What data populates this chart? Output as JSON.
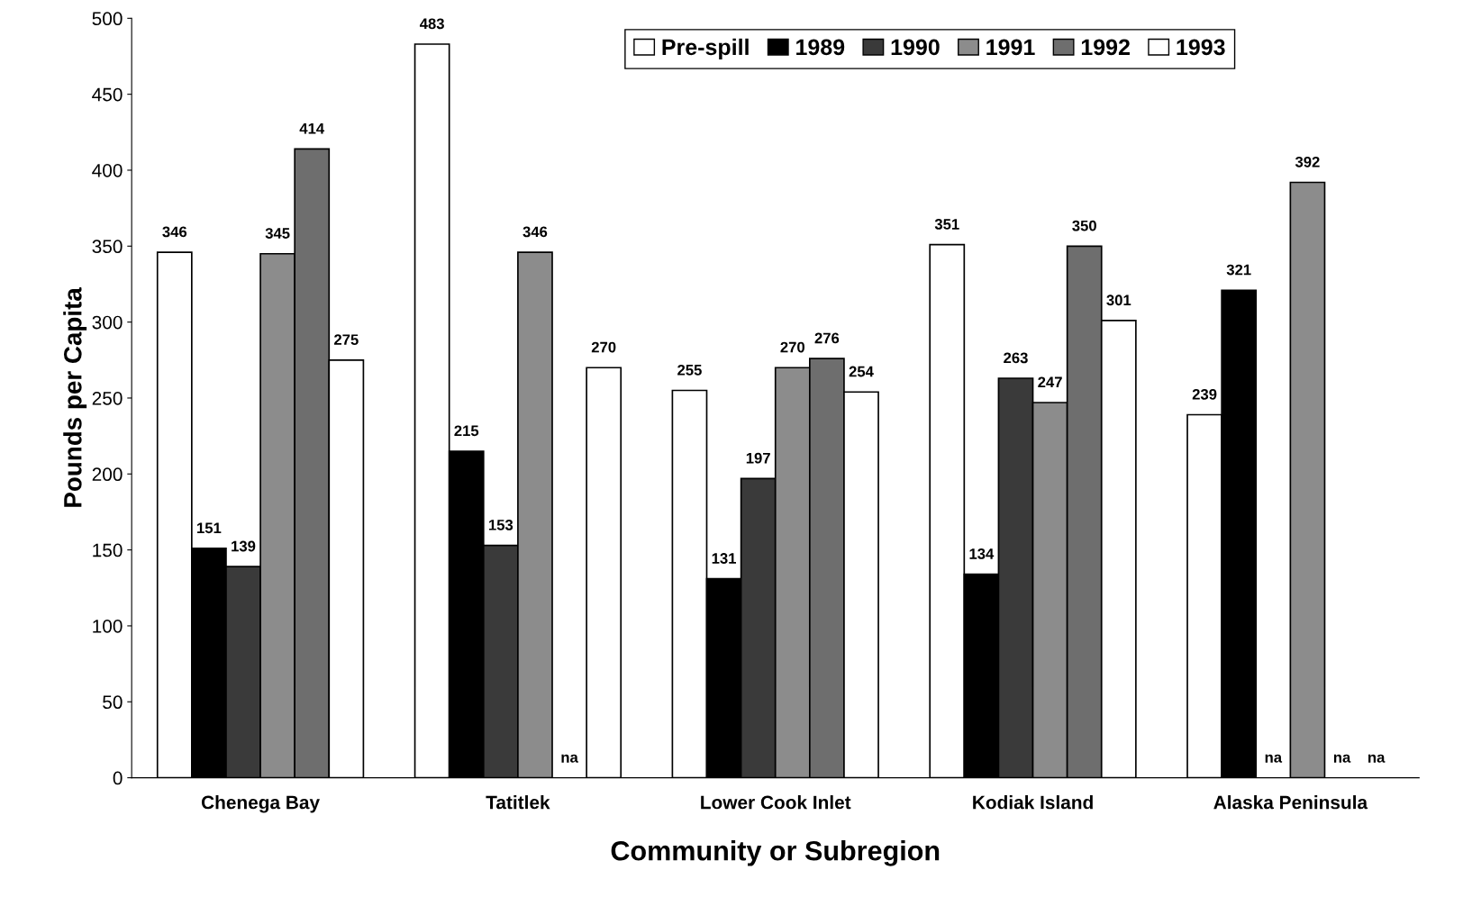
{
  "chart_data": {
    "type": "bar",
    "xlabel": "Community or Subregion",
    "ylabel": "Pounds per Capita",
    "categories": [
      "Chenega Bay",
      "Tatitlek",
      "Lower Cook Inlet",
      "Kodiak Island",
      "Alaska Peninsula"
    ],
    "series": [
      {
        "name": "Pre-spill",
        "color": "#ffffff",
        "values": [
          346,
          483,
          255,
          351,
          239
        ],
        "value_labels": [
          "346",
          "483",
          "255",
          "351",
          "239"
        ]
      },
      {
        "name": "1989",
        "color": "#000000",
        "values": [
          151,
          215,
          131,
          134,
          321
        ],
        "value_labels": [
          "151",
          "215",
          "131",
          "134",
          "321"
        ]
      },
      {
        "name": "1990",
        "color": "#3a3a3a",
        "values": [
          139,
          153,
          197,
          263,
          null
        ],
        "value_labels": [
          "139",
          "153",
          "197",
          "263",
          "na"
        ]
      },
      {
        "name": "1991",
        "color": "#8c8c8c",
        "values": [
          345,
          346,
          270,
          247,
          392
        ],
        "value_labels": [
          "345",
          "346",
          "270",
          "247",
          "392"
        ]
      },
      {
        "name": "1992",
        "color": "#6e6e6e",
        "values": [
          414,
          null,
          276,
          350,
          null
        ],
        "value_labels": [
          "414",
          "na",
          "276",
          "350",
          "na"
        ]
      },
      {
        "name": "1993",
        "color": "#ffffff",
        "values": [
          275,
          270,
          254,
          301,
          null
        ],
        "value_labels": [
          "275",
          "270",
          "254",
          "301",
          "na"
        ]
      }
    ],
    "ylim": [
      0,
      500
    ],
    "yticks": [
      0,
      50,
      100,
      150,
      200,
      250,
      300,
      350,
      400,
      450,
      500
    ],
    "grid": false,
    "legend": "top"
  }
}
